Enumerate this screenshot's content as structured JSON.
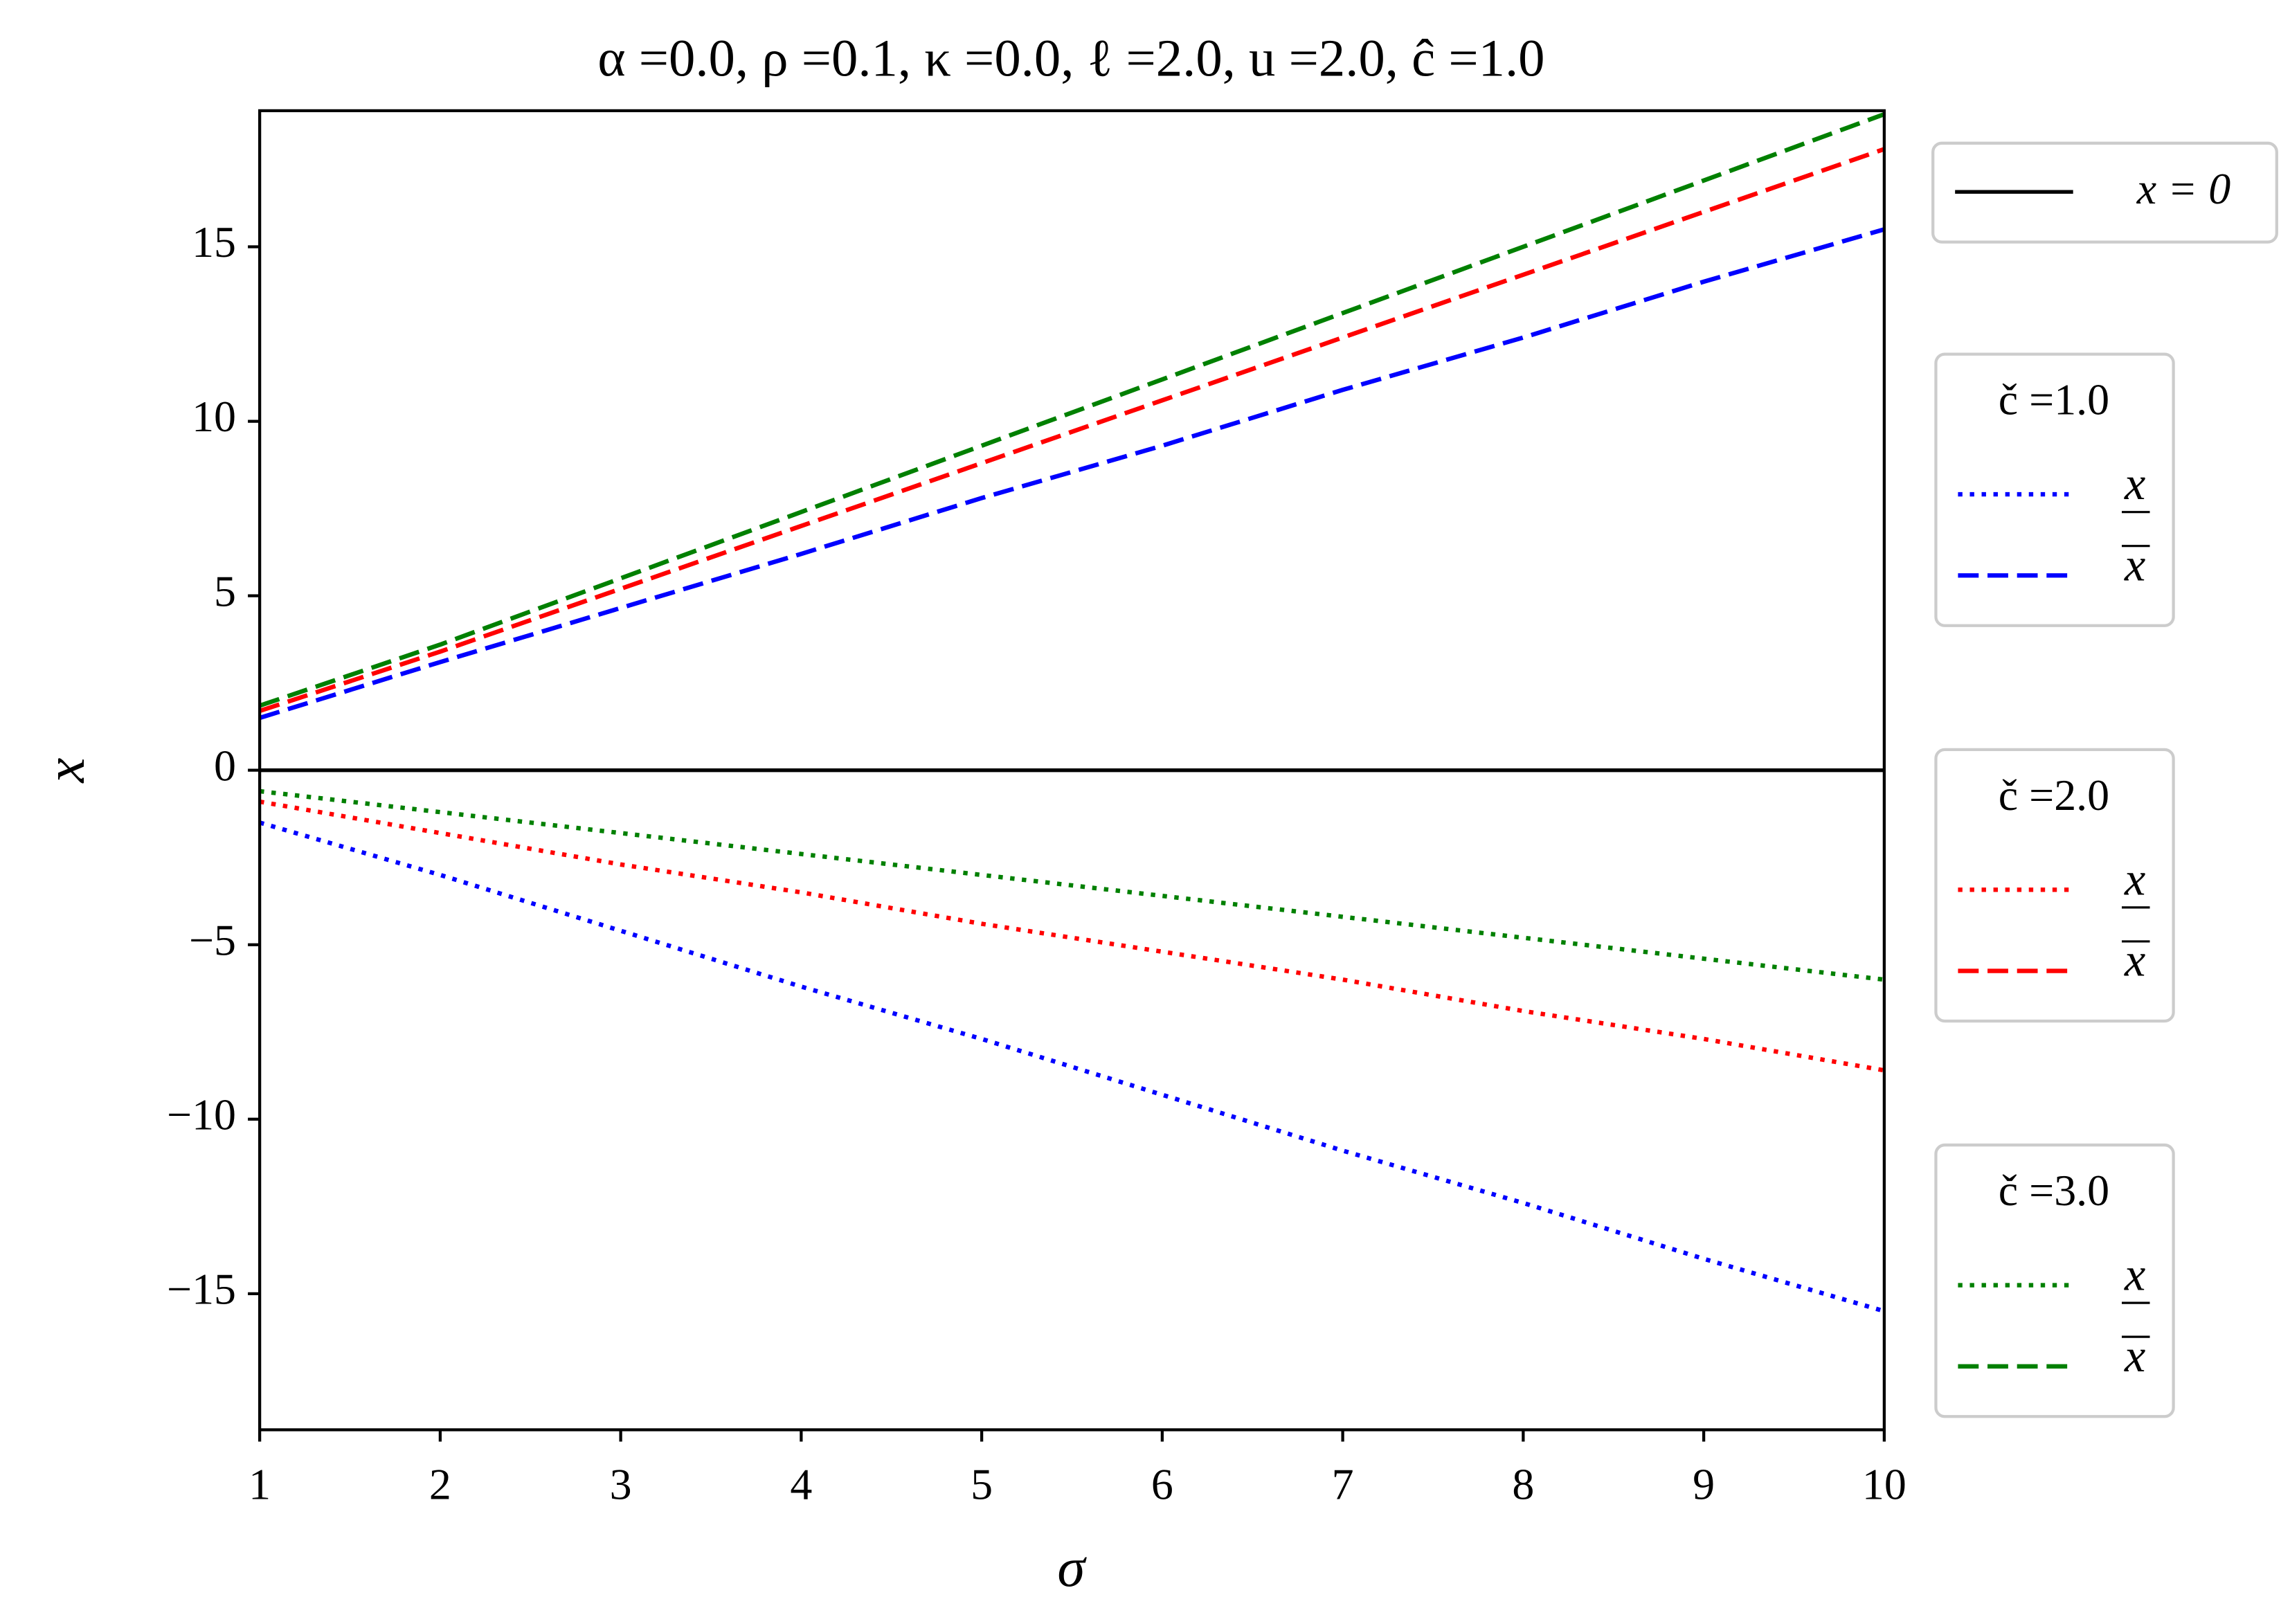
{
  "chart_data": {
    "type": "line",
    "title": "α =0.0, ρ =0.1, κ =0.0, ℓ =2.0, u =2.0, ĉ =1.0",
    "x_label": "σ",
    "y_label": "x",
    "x": [
      1,
      2,
      3,
      4,
      5,
      6,
      7,
      8,
      9,
      10
    ],
    "xlim": [
      1,
      10
    ],
    "xticks": [
      1,
      2,
      3,
      4,
      5,
      6,
      7,
      8,
      9,
      10
    ],
    "ylim": [
      -18.9,
      18.9
    ],
    "yticks": [
      {
        "value": -15,
        "label": "−15"
      },
      {
        "value": -10,
        "label": "−10"
      },
      {
        "value": -5,
        "label": "−5"
      },
      0,
      5,
      10,
      15
    ],
    "hline": {
      "value": 0,
      "label": "x = 0",
      "color": "#000000"
    },
    "groups": [
      {
        "title": "č =1.0",
        "series": [
          {
            "name": "x",
            "bar": "under",
            "style": "dotted",
            "color": "#0000ff",
            "values": [
              -1.5,
              -3.0,
              -4.6,
              -6.2,
              -7.7,
              -9.3,
              -10.9,
              -12.4,
              -14.0,
              -15.5
            ]
          },
          {
            "name": "x",
            "bar": "over",
            "style": "dashed",
            "color": "#0000ff",
            "values": [
              1.5,
              3.1,
              4.65,
              6.2,
              7.8,
              9.3,
              10.9,
              12.4,
              14.0,
              15.5
            ]
          }
        ]
      },
      {
        "title": "č =2.0",
        "series": [
          {
            "name": "x",
            "bar": "under",
            "style": "dotted",
            "color": "#ff0000",
            "values": [
              -0.9,
              -1.8,
              -2.7,
              -3.5,
              -4.4,
              -5.2,
              -6.0,
              -6.9,
              -7.7,
              -8.6
            ]
          },
          {
            "name": "x",
            "bar": "over",
            "style": "dashed",
            "color": "#ff0000",
            "values": [
              1.7,
              3.4,
              5.2,
              7.0,
              8.8,
              10.6,
              12.4,
              14.2,
              16.0,
              17.8
            ]
          }
        ]
      },
      {
        "title": "č =3.0",
        "series": [
          {
            "name": "x",
            "bar": "under",
            "style": "dotted",
            "color": "#008000",
            "values": [
              -0.6,
              -1.2,
              -1.8,
              -2.4,
              -3.0,
              -3.6,
              -4.2,
              -4.8,
              -5.4,
              -6.0
            ]
          },
          {
            "name": "x",
            "bar": "over",
            "style": "dashed",
            "color": "#008000",
            "values": [
              1.85,
              3.6,
              5.5,
              7.4,
              9.3,
              11.2,
              13.1,
              15.0,
              16.9,
              18.8
            ]
          }
        ]
      }
    ]
  }
}
